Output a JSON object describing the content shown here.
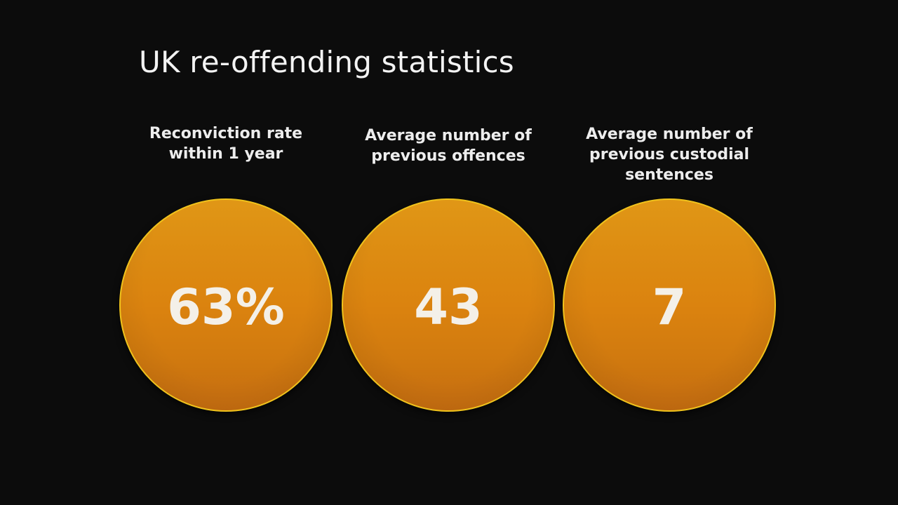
{
  "title": "UK re-offending statistics",
  "stats": [
    {
      "label": "Reconviction rate\nwithin 1 year",
      "value": "63%"
    },
    {
      "label": "Average number of\nprevious offences",
      "value": "43"
    },
    {
      "label": "Average number of\nprevious custodial\nsentences",
      "value": "7"
    }
  ],
  "colors": {
    "background": "#0c0c0c",
    "circle_fill": "#db830f",
    "circle_rim": "#f0c31c",
    "text": "#f3f3f3"
  }
}
